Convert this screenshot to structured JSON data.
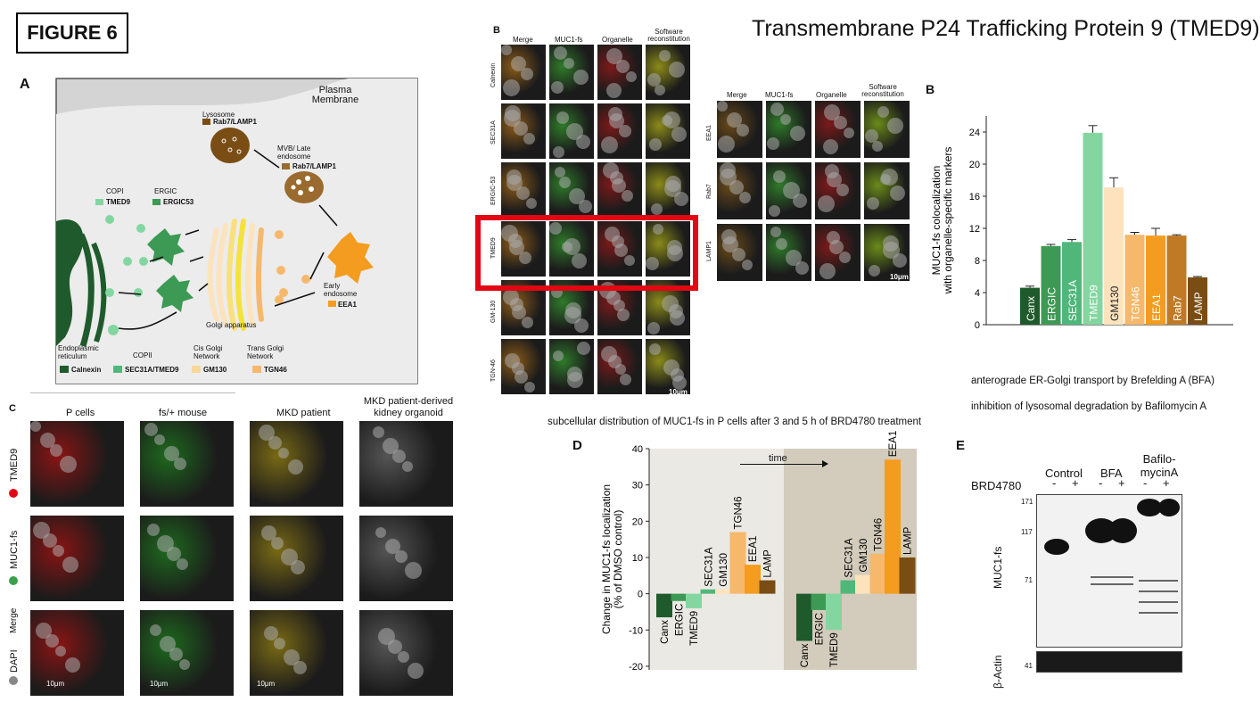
{
  "figure_label": "FIGURE 6",
  "main_title": "Transmembrane P24 Trafficking Protein 9 (TMED9)",
  "panel_a": {
    "label": "A",
    "plasma_membrane": "Plasma Membrane",
    "lysosome": "Lysosome",
    "lysosome_marker": "Rab7/LAMP1",
    "mvb": "MVB/ Late endosome",
    "mvb_marker": "Rab7/LAMP1",
    "copi": "COPI",
    "copi_marker": "TMED9",
    "ergic": "ERGIC",
    "ergic_marker": "ERGIC53",
    "golgi": "Golgi apparatus",
    "early_endosome": "Early endosome",
    "early_endosome_marker": "EEA1",
    "er": "Endoplasmic reticulum",
    "copii": "COPII",
    "cis_golgi": "Cis Golgi Network",
    "trans_golgi": "Trans Golgi Network",
    "legend": [
      {
        "label": "Calnexin",
        "color": "#1f5a2c"
      },
      {
        "label": "SEC31A/TMED9",
        "color": "#4fb77a"
      },
      {
        "label": "GM130",
        "color": "#f7d79a"
      },
      {
        "label": "TGN46",
        "color": "#f6b86b"
      }
    ]
  },
  "panel_b": {
    "label": "B",
    "cols": [
      "Merge",
      "MUC1-fs",
      "Organelle",
      "Software reconstitution"
    ],
    "rows_left": [
      "Calnexin",
      "SEC31A",
      "ERGIC-53",
      "TMED9",
      "GM-130",
      "TGN-46"
    ],
    "rows_right": [
      "EEA1",
      "Rab7",
      "LAMP1"
    ],
    "scale": "10μm",
    "highlighted_row": "TMED9"
  },
  "panel_b_chart": {
    "label": "B",
    "ylabel": "MUC1-fs colocalization with organelle-specific markers"
  },
  "panel_c": {
    "label": "C",
    "cols": [
      "P cells",
      "fs/+ mouse",
      "MKD patient",
      "MKD patient-derived kidney organoid"
    ],
    "rows": [
      "TMED9",
      "MUC1-fs",
      "Merge",
      "DAPI"
    ],
    "scale": "10μm"
  },
  "notes": {
    "bfa": "anterograde ER-Golgi transport by Brefelding A (BFA)",
    "baf": "inhibition of lysosomal degradation by Bafilomycin A",
    "distribution": "subcellular distribution of MUC1-fs in P cells after 3 and 5 h of BRD4780 treatment"
  },
  "panel_d": {
    "label": "D",
    "ylabel": "Change in MUC1-fs localization (% of DMSO control)",
    "time": "time"
  },
  "panel_e": {
    "label": "E",
    "groups": [
      "Control",
      "BFA",
      "Bafilo- mycinA"
    ],
    "treatment": "BRD4780",
    "signs": [
      "-",
      "+",
      "-",
      "+",
      "-",
      "+"
    ],
    "mw": [
      "171",
      "117",
      "71",
      "41"
    ],
    "blot_label": "MUC1-fs",
    "actin_label": "β-Actin"
  },
  "chart_data": [
    {
      "type": "bar",
      "categories": [
        "Canx",
        "ERGIC",
        "SEC31A",
        "TMED9",
        "GM130",
        "TGN46",
        "EEA1",
        "Rab7",
        "LAMP"
      ],
      "values": [
        4.6,
        9.8,
        10.3,
        23.9,
        17.1,
        11.2,
        11.1,
        11.1,
        5.9
      ],
      "errors": [
        0.2,
        0.2,
        0.3,
        0.9,
        1.2,
        0.3,
        0.9,
        0.1,
        0.1
      ],
      "colors": [
        "#1f5a2c",
        "#3c9a54",
        "#4fb77a",
        "#84d6a0",
        "#fde3bd",
        "#f6b86b",
        "#f49c1f",
        "#c07a26",
        "#7a4d14"
      ],
      "yticks": [
        0,
        4,
        8,
        12,
        16,
        20,
        24
      ],
      "ylim": [
        0,
        26
      ],
      "ylabel": "MUC1-fs colocalization with organelle-specific markers"
    },
    {
      "type": "bar",
      "categories": [
        "Canx",
        "ERGIC",
        "TMED9",
        "SEC31A",
        "GM130",
        "TGN46",
        "EEA1",
        "LAMP"
      ],
      "series": [
        {
          "values": [
            -6.5,
            -2.0,
            -4.0,
            1.2,
            1.2,
            17.0,
            8.0,
            3.7
          ]
        },
        {
          "values": [
            -13.0,
            -4.5,
            -10.0,
            3.7,
            5.2,
            11.0,
            37.0,
            10.0
          ]
        }
      ],
      "colors": [
        "#1f5a2c",
        "#3c9a54",
        "#84d6a0",
        "#4fb77a",
        "#fde3bd",
        "#f6b86b",
        "#f49c1f",
        "#7a4d14"
      ],
      "yticks": [
        -20,
        -10,
        0,
        10,
        20,
        30,
        40
      ],
      "ylim": [
        -21,
        40
      ],
      "ylabel": "Change in MUC1-fs localization (% of DMSO control)"
    }
  ]
}
